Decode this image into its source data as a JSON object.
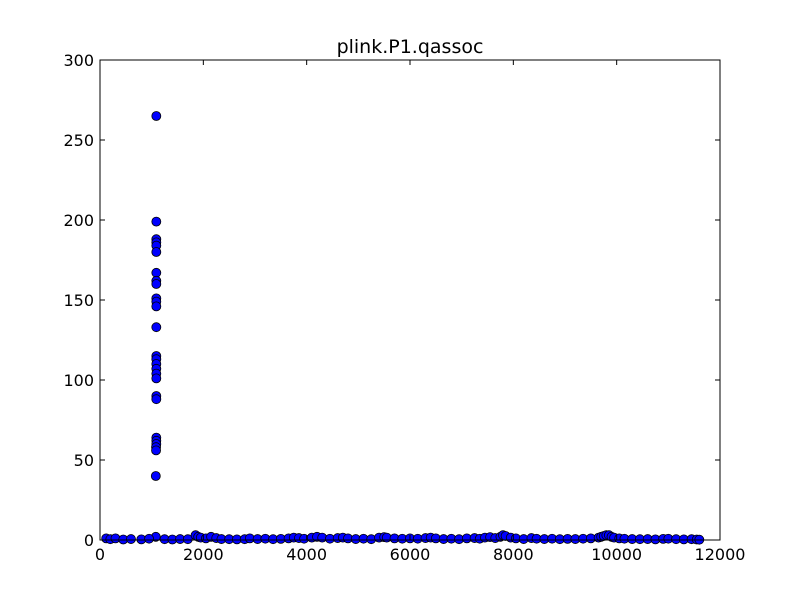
{
  "chart_data": {
    "type": "scatter",
    "title": "plink.P1.qassoc",
    "xlabel": "",
    "ylabel": "",
    "xlim": [
      0,
      12000
    ],
    "ylim": [
      0,
      300
    ],
    "x_ticks": [
      0,
      2000,
      4000,
      6000,
      8000,
      10000,
      12000
    ],
    "y_ticks": [
      0,
      50,
      100,
      150,
      200,
      250,
      300
    ],
    "x_tick_labels": [
      "0",
      "2000",
      "4000",
      "6000",
      "8000",
      "10000",
      "12000"
    ],
    "y_tick_labels": [
      "0",
      "50",
      "100",
      "150",
      "200",
      "250",
      "300"
    ],
    "grid": false,
    "legend": "none",
    "marker_fill": "#0000ff",
    "marker_edge": "#000000",
    "series": [
      {
        "points": [
          [
            1090,
            265
          ],
          [
            1090,
            199
          ],
          [
            1090,
            188
          ],
          [
            1090,
            186
          ],
          [
            1090,
            184
          ],
          [
            1090,
            180
          ],
          [
            1090,
            167
          ],
          [
            1090,
            162
          ],
          [
            1090,
            160
          ],
          [
            1090,
            151
          ],
          [
            1090,
            149
          ],
          [
            1090,
            146
          ],
          [
            1090,
            133
          ],
          [
            1090,
            115
          ],
          [
            1090,
            113
          ],
          [
            1090,
            110
          ],
          [
            1090,
            107
          ],
          [
            1090,
            104
          ],
          [
            1090,
            101
          ],
          [
            1090,
            90
          ],
          [
            1090,
            88
          ],
          [
            1090,
            64
          ],
          [
            1090,
            62
          ],
          [
            1090,
            60
          ],
          [
            1085,
            58
          ],
          [
            1085,
            56
          ],
          [
            1080,
            40
          ],
          [
            1080,
            2
          ],
          [
            120,
            1
          ],
          [
            200,
            0.5
          ],
          [
            300,
            1
          ],
          [
            450,
            0.3
          ],
          [
            600,
            0.6
          ],
          [
            800,
            0.4
          ],
          [
            950,
            0.8
          ],
          [
            1250,
            0.5
          ],
          [
            1400,
            0.3
          ],
          [
            1550,
            0.6
          ],
          [
            1700,
            0.5
          ],
          [
            1850,
            3
          ],
          [
            1900,
            2
          ],
          [
            1950,
            1.5
          ],
          [
            2050,
            1
          ],
          [
            2150,
            2
          ],
          [
            2250,
            1.2
          ],
          [
            2350,
            0.6
          ],
          [
            2500,
            0.5
          ],
          [
            2650,
            0.4
          ],
          [
            2800,
            0.5
          ],
          [
            2900,
            1
          ],
          [
            3050,
            0.6
          ],
          [
            3200,
            0.8
          ],
          [
            3350,
            0.5
          ],
          [
            3500,
            0.7
          ],
          [
            3650,
            1
          ],
          [
            3750,
            1.5
          ],
          [
            3850,
            1.2
          ],
          [
            3950,
            0.8
          ],
          [
            4100,
            1.5
          ],
          [
            4200,
            2
          ],
          [
            4300,
            1.5
          ],
          [
            4450,
            0.8
          ],
          [
            4600,
            1.2
          ],
          [
            4700,
            1.5
          ],
          [
            4800,
            1
          ],
          [
            4950,
            0.6
          ],
          [
            5100,
            0.8
          ],
          [
            5250,
            0.5
          ],
          [
            5400,
            1.5
          ],
          [
            5500,
            1.8
          ],
          [
            5550,
            1.5
          ],
          [
            5700,
            1
          ],
          [
            5850,
            0.8
          ],
          [
            6000,
            1
          ],
          [
            6150,
            0.8
          ],
          [
            6300,
            1.2
          ],
          [
            6400,
            1.5
          ],
          [
            6500,
            1
          ],
          [
            6650,
            0.6
          ],
          [
            6800,
            0.8
          ],
          [
            6950,
            0.5
          ],
          [
            7100,
            1
          ],
          [
            7250,
            1.2
          ],
          [
            7350,
            0.8
          ],
          [
            7450,
            1.5
          ],
          [
            7550,
            1.8
          ],
          [
            7650,
            1.2
          ],
          [
            7750,
            2
          ],
          [
            7800,
            3
          ],
          [
            7850,
            2.5
          ],
          [
            7950,
            1.5
          ],
          [
            8050,
            1
          ],
          [
            8200,
            0.6
          ],
          [
            8350,
            1.2
          ],
          [
            8450,
            0.8
          ],
          [
            8600,
            0.6
          ],
          [
            8750,
            0.8
          ],
          [
            8900,
            0.5
          ],
          [
            9050,
            0.7
          ],
          [
            9200,
            0.6
          ],
          [
            9350,
            0.8
          ],
          [
            9500,
            1
          ],
          [
            9650,
            1.5
          ],
          [
            9700,
            2
          ],
          [
            9750,
            2.5
          ],
          [
            9800,
            3
          ],
          [
            9850,
            3
          ],
          [
            9900,
            2
          ],
          [
            9950,
            1.5
          ],
          [
            10050,
            1
          ],
          [
            10150,
            0.8
          ],
          [
            10300,
            0.6
          ],
          [
            10450,
            0.5
          ],
          [
            10600,
            0.6
          ],
          [
            10750,
            0.4
          ],
          [
            10900,
            0.7
          ],
          [
            11000,
            0.8
          ],
          [
            11150,
            0.5
          ],
          [
            11300,
            0.4
          ],
          [
            11450,
            0.5
          ],
          [
            11550,
            0.3
          ],
          [
            11600,
            0.2
          ]
        ]
      }
    ]
  }
}
